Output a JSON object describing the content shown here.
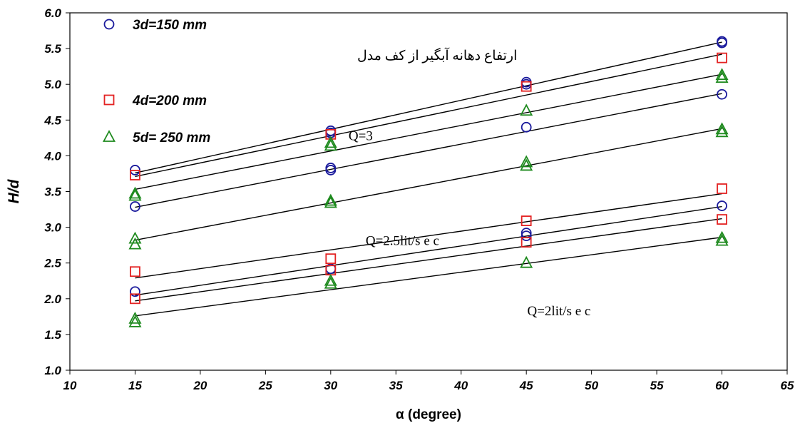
{
  "chart_data": {
    "type": "scatter",
    "title": "",
    "xlabel": "α (degree)",
    "ylabel": "H/d",
    "xlim": [
      10,
      65
    ],
    "ylim": [
      1.0,
      6.0
    ],
    "xticks": [
      "10",
      "15",
      "20",
      "25",
      "30",
      "35",
      "40",
      "45",
      "50",
      "55",
      "60",
      "65"
    ],
    "yticks": [
      "1.0",
      "1.5",
      "2.0",
      "2.5",
      "3.0",
      "3.5",
      "4.0",
      "4.5",
      "5.0",
      "5.5",
      "6.0"
    ],
    "grid": false,
    "legend_position": "top-left",
    "series": [
      {
        "name": "3d=150 mm",
        "marker": "circle",
        "color": "#1a1a9c",
        "points": [
          [
            15,
            3.8
          ],
          [
            15,
            3.29
          ],
          [
            15,
            2.1
          ],
          [
            30,
            4.35
          ],
          [
            30,
            4.32
          ],
          [
            30,
            3.83
          ],
          [
            30,
            3.8
          ],
          [
            30,
            2.42
          ],
          [
            45,
            5.03
          ],
          [
            45,
            5.0
          ],
          [
            45,
            4.4
          ],
          [
            45,
            2.92
          ],
          [
            45,
            2.88
          ],
          [
            60,
            5.6
          ],
          [
            60,
            5.58
          ],
          [
            60,
            4.86
          ],
          [
            60,
            3.3
          ]
        ]
      },
      {
        "name": "4d=200 mm",
        "marker": "square",
        "color": "#e32222",
        "points": [
          [
            15,
            3.73
          ],
          [
            15,
            2.38
          ],
          [
            15,
            2.0
          ],
          [
            30,
            4.3
          ],
          [
            30,
            2.56
          ],
          [
            30,
            2.4
          ],
          [
            45,
            4.97
          ],
          [
            45,
            3.09
          ],
          [
            45,
            2.79
          ],
          [
            60,
            5.37
          ],
          [
            60,
            3.54
          ],
          [
            60,
            3.11
          ]
        ]
      },
      {
        "name": "5d= 250 mm",
        "marker": "triangle",
        "color": "#1e8a1e",
        "points": [
          [
            15,
            3.47
          ],
          [
            15,
            3.44
          ],
          [
            15,
            2.84
          ],
          [
            15,
            2.76
          ],
          [
            15,
            1.72
          ],
          [
            15,
            1.67
          ],
          [
            30,
            4.18
          ],
          [
            30,
            4.14
          ],
          [
            30,
            3.37
          ],
          [
            30,
            3.34
          ],
          [
            30,
            2.25
          ],
          [
            30,
            2.21
          ],
          [
            45,
            4.63
          ],
          [
            45,
            3.91
          ],
          [
            45,
            3.86
          ],
          [
            45,
            2.5
          ],
          [
            60,
            5.13
          ],
          [
            60,
            5.09
          ],
          [
            60,
            4.37
          ],
          [
            60,
            4.33
          ],
          [
            60,
            2.85
          ],
          [
            60,
            2.81
          ]
        ]
      }
    ],
    "trendlines": [
      {
        "x": [
          15,
          60
        ],
        "y": [
          3.76,
          5.59
        ]
      },
      {
        "x": [
          15,
          60
        ],
        "y": [
          3.71,
          5.42
        ]
      },
      {
        "x": [
          15,
          60
        ],
        "y": [
          3.53,
          5.14
        ]
      },
      {
        "x": [
          15,
          60
        ],
        "y": [
          3.28,
          4.87
        ]
      },
      {
        "x": [
          15,
          60
        ],
        "y": [
          2.82,
          4.38
        ]
      },
      {
        "x": [
          15,
          60
        ],
        "y": [
          2.29,
          3.47
        ]
      },
      {
        "x": [
          15,
          60
        ],
        "y": [
          2.05,
          3.29
        ]
      },
      {
        "x": [
          15,
          60
        ],
        "y": [
          1.97,
          3.12
        ]
      },
      {
        "x": [
          15,
          60
        ],
        "y": [
          1.76,
          2.86
        ]
      }
    ],
    "annotations": [
      {
        "text": "ارتفاع دهانه آبگیر از کف مدل",
        "x": 44.3,
        "y": 5.34,
        "anchor": "end"
      },
      {
        "text": "Q=3",
        "x": 32.3,
        "y": 4.22,
        "anchor": "middle"
      },
      {
        "text": "Q=2.5lit/s e c",
        "x": 35.5,
        "y": 2.75,
        "anchor": "middle"
      },
      {
        "text": "Q=2lit/s e c",
        "x": 47.5,
        "y": 1.77,
        "anchor": "middle"
      }
    ]
  }
}
